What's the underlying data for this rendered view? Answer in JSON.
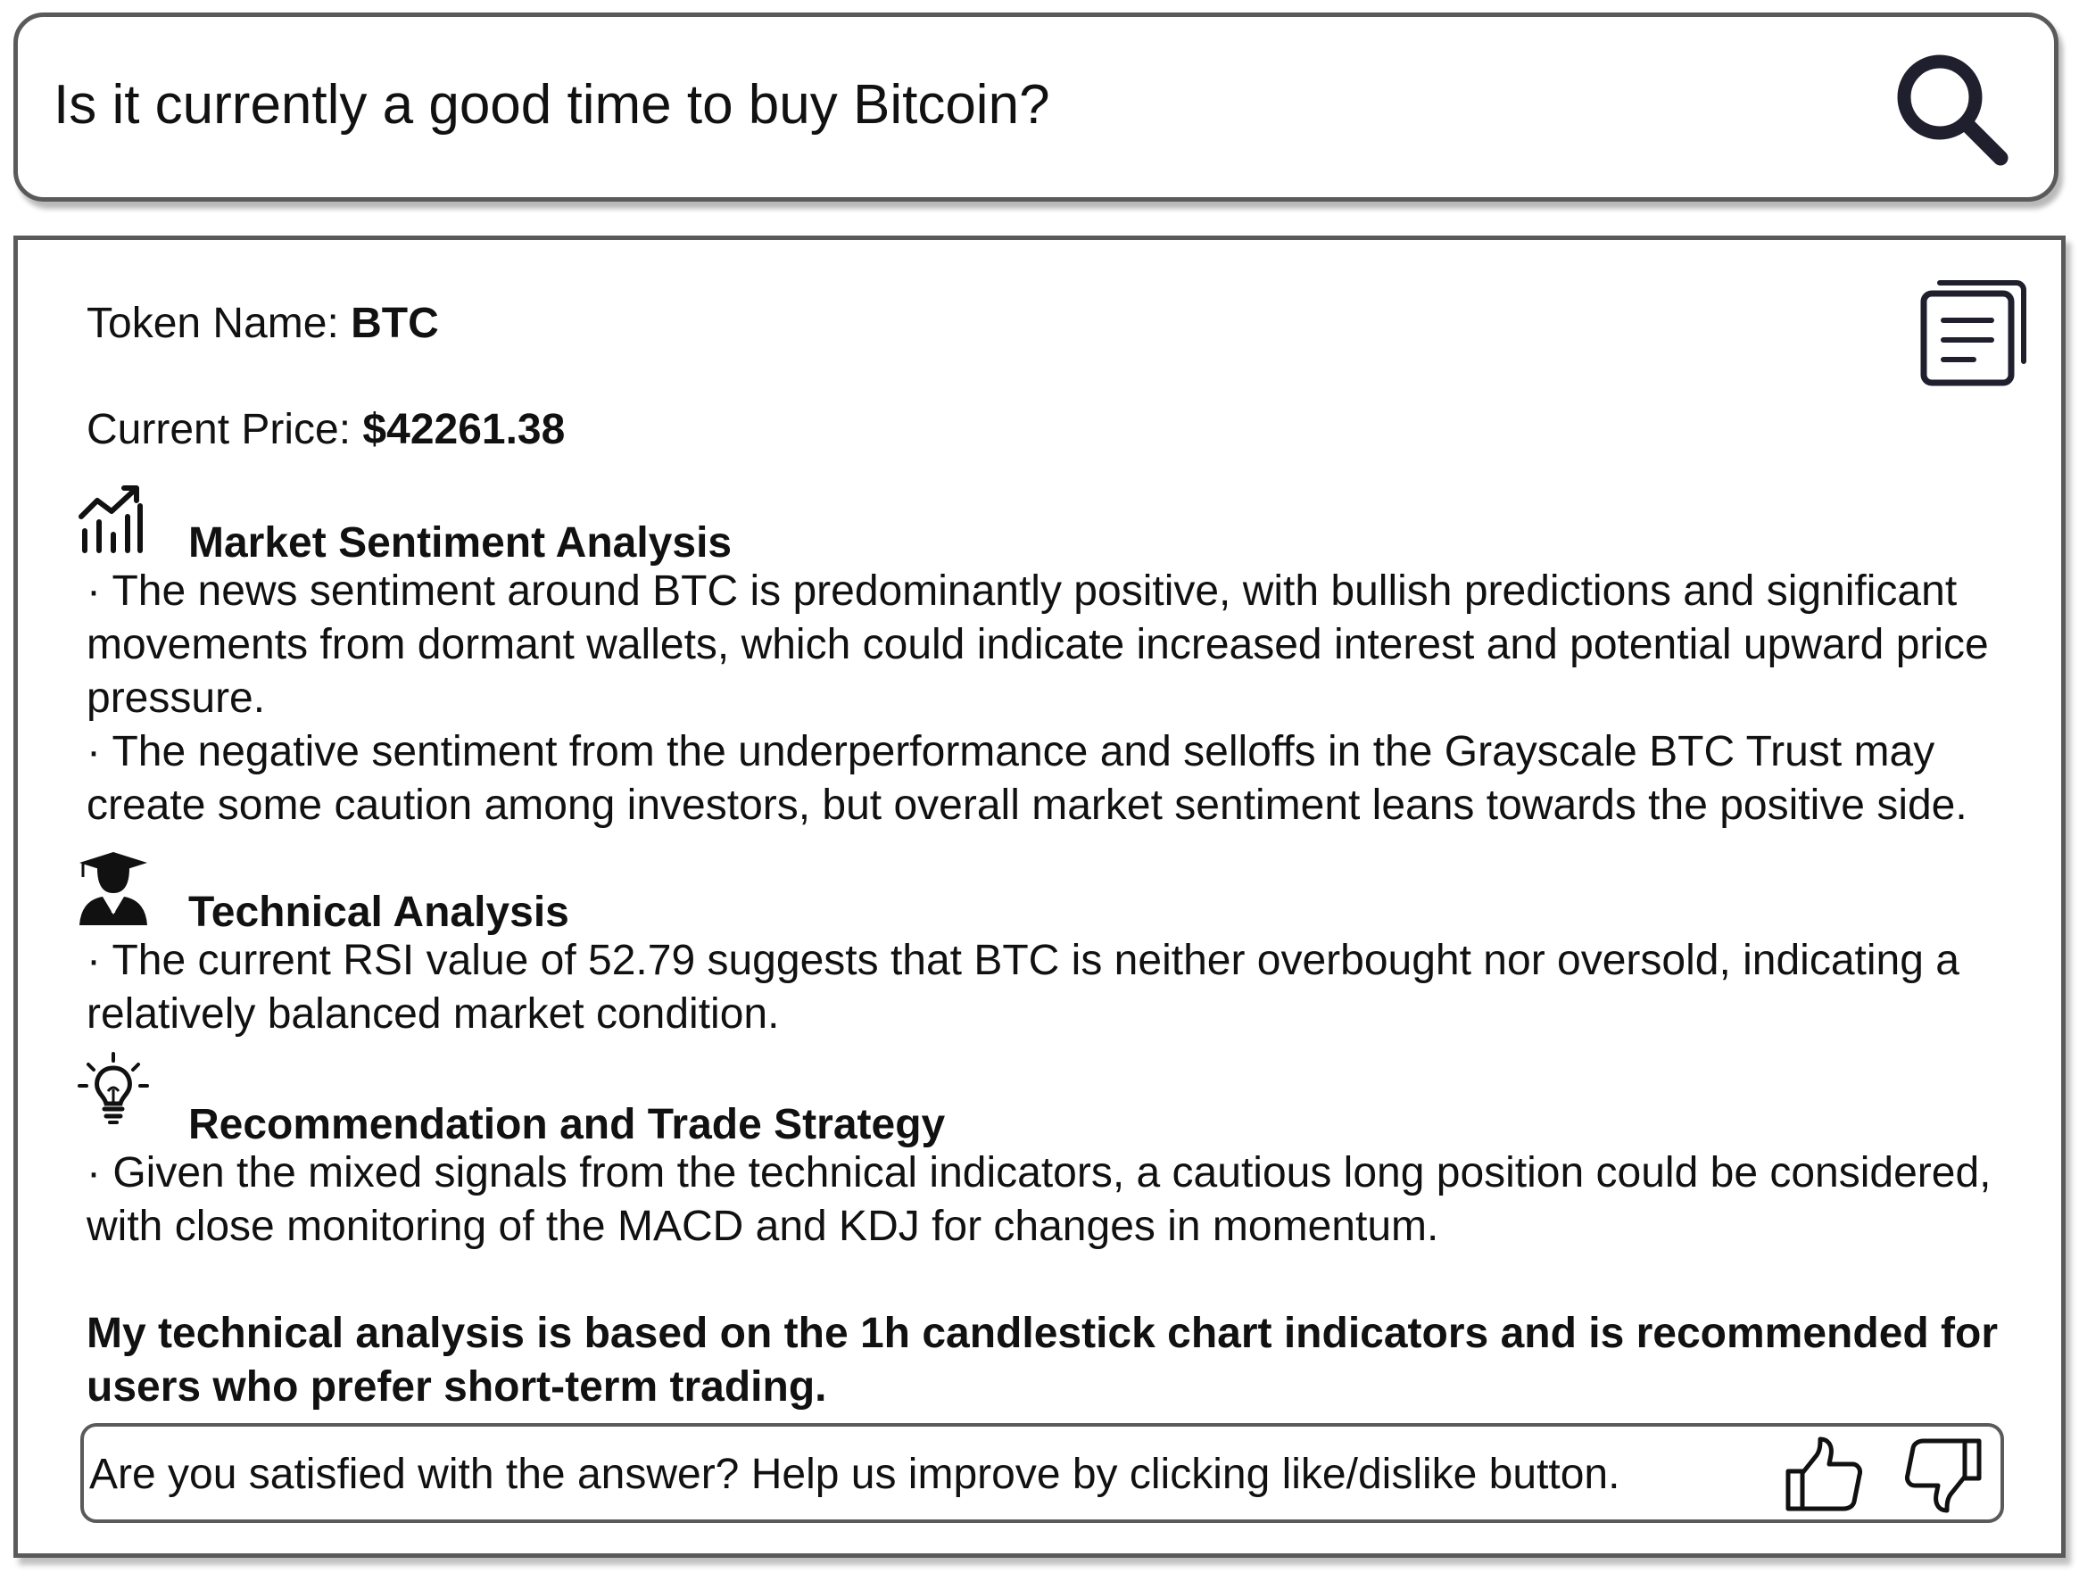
{
  "search": {
    "query": "Is it currently a good time to buy Bitcoin?",
    "button_icon": "search-icon"
  },
  "answer": {
    "copy_icon": "copy-document-icon",
    "token_label": "Token Name: ",
    "token_value": "BTC",
    "price_label": "Current Price: ",
    "price_value": "$42261.38",
    "sections": [
      {
        "icon": "chart-trend-icon",
        "title": "Market Sentiment Analysis",
        "bullets": [
          "· The news sentiment around BTC is predominantly positive, with bullish predictions and significant movements from dormant wallets, which could indicate increased interest and potential upward price pressure.",
          "· The negative sentiment from the underperformance and selloffs in the Grayscale BTC Trust may create some caution among investors, but overall market sentiment leans towards the positive side."
        ]
      },
      {
        "icon": "analyst-icon",
        "title": "Technical Analysis",
        "bullets": [
          "· The current RSI value of 52.79 suggests that BTC is neither overbought nor oversold, indicating a relatively balanced market condition."
        ]
      },
      {
        "icon": "lightbulb-icon",
        "title": "Recommendation and Trade Strategy",
        "bullets": [
          "· Given the mixed signals from the technical indicators, a cautious long position could be considered, with close monitoring of the MACD and KDJ for changes in momentum."
        ]
      }
    ],
    "disclaimer": "My technical analysis is based on the 1h candlestick chart indicators and is recommended for users who prefer short-term trading."
  },
  "feedback": {
    "prompt": "Are you satisfied with the answer? Help us improve by clicking like/dislike button.",
    "like_icon": "thumbs-up-icon",
    "dislike_icon": "thumbs-down-icon"
  }
}
